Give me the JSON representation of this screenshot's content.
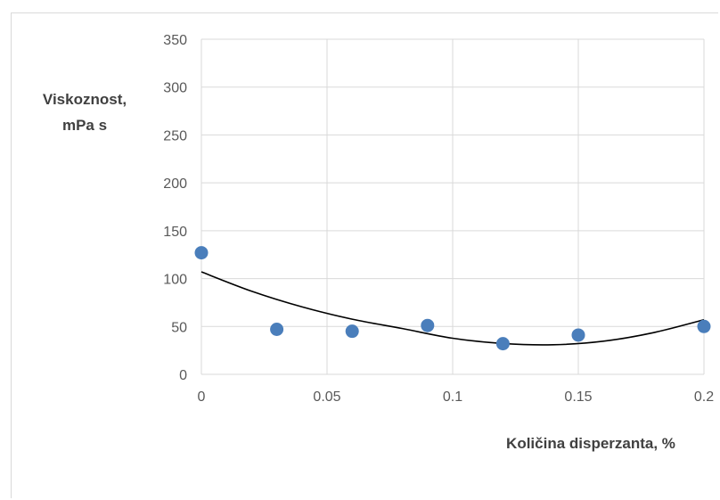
{
  "chart_data": {
    "type": "scatter",
    "ylabel_lines": [
      "Viskoznost,",
      "mPa s"
    ],
    "xlabel": "Količina disperzanta, %",
    "xlim": [
      0,
      0.2
    ],
    "ylim": [
      0,
      350
    ],
    "x_ticks": [
      0,
      0.05,
      0.1,
      0.15,
      0.2
    ],
    "x_tick_labels": [
      "0",
      "0.05",
      "0.1",
      "0.15",
      "0.2"
    ],
    "y_ticks": [
      0,
      50,
      100,
      150,
      200,
      250,
      300,
      350
    ],
    "y_tick_labels": [
      "0",
      "50",
      "100",
      "150",
      "200",
      "250",
      "300",
      "350"
    ],
    "grid": true,
    "series": [
      {
        "x": [
          0,
          0.03,
          0.06,
          0.09,
          0.12,
          0.15,
          0.2
        ],
        "y": [
          127,
          47,
          45,
          51,
          32,
          41,
          50
        ],
        "color": "#4a7ebb"
      }
    ],
    "trendline": {
      "type": "polynomial",
      "x": [
        0,
        0.02,
        0.04,
        0.06,
        0.08,
        0.1,
        0.12,
        0.14,
        0.16,
        0.18,
        0.2
      ],
      "y": [
        107,
        86.8,
        70.5,
        57.6,
        47.8,
        37.7,
        32.2,
        30.9,
        34.6,
        43.6,
        57
      ],
      "color": "#000000"
    }
  }
}
